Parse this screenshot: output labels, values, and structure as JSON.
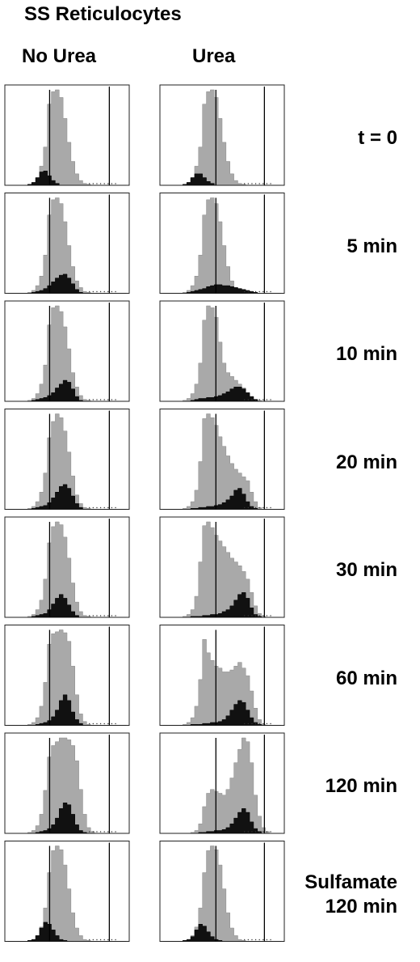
{
  "figure": {
    "title": "SS Reticulocytes",
    "columns": [
      "No Urea",
      "Urea"
    ]
  },
  "chart_data": {
    "type": "area",
    "title": "SS Reticulocytes",
    "columns": [
      "No Urea",
      "Urea"
    ],
    "rows": [
      {
        "label": [
          "t = 0"
        ]
      },
      {
        "label": [
          "5 min"
        ]
      },
      {
        "label": [
          "10 min"
        ]
      },
      {
        "label": [
          "20 min"
        ]
      },
      {
        "label": [
          "30 min"
        ]
      },
      {
        "label": [
          "60 min"
        ]
      },
      {
        "label": [
          "120 min"
        ]
      },
      {
        "label": [
          "Sulfamate",
          "120 min"
        ]
      }
    ],
    "series": [
      {
        "row": 0,
        "col": 0,
        "gray": [
          0,
          0,
          0,
          0,
          0,
          1,
          3,
          8,
          20,
          40,
          85,
          98,
          100,
          92,
          70,
          45,
          25,
          12,
          5,
          2,
          1,
          0,
          0,
          0,
          0,
          0,
          0,
          0,
          0,
          0
        ],
        "black": [
          0,
          0,
          0,
          0,
          0,
          1,
          3,
          8,
          14,
          15,
          10,
          5,
          2,
          0,
          0,
          0,
          0,
          0,
          0,
          0,
          0,
          0,
          0,
          0,
          0,
          0,
          0,
          0,
          0,
          0
        ]
      },
      {
        "row": 0,
        "col": 1,
        "gray": [
          0,
          0,
          0,
          0,
          0,
          1,
          3,
          8,
          20,
          40,
          85,
          98,
          100,
          92,
          70,
          45,
          25,
          12,
          5,
          2,
          1,
          0,
          0,
          0,
          0,
          0,
          0,
          0,
          0,
          0
        ],
        "black": [
          0,
          0,
          0,
          0,
          0,
          1,
          3,
          8,
          12,
          12,
          8,
          4,
          2,
          0,
          0,
          0,
          0,
          0,
          0,
          0,
          0,
          0,
          0,
          0,
          0,
          0,
          0,
          0,
          0,
          0
        ]
      },
      {
        "row": 1,
        "col": 0,
        "gray": [
          0,
          0,
          0,
          0,
          0,
          1,
          3,
          8,
          18,
          40,
          82,
          98,
          100,
          94,
          75,
          50,
          28,
          13,
          6,
          2,
          1,
          0,
          0,
          0,
          0,
          0,
          0,
          0,
          0,
          0
        ],
        "black": [
          0,
          0,
          0,
          0,
          0,
          0,
          1,
          2,
          3,
          5,
          8,
          12,
          16,
          19,
          20,
          16,
          10,
          4,
          1,
          0,
          0,
          0,
          0,
          0,
          0,
          0,
          0,
          0,
          0,
          0
        ]
      },
      {
        "row": 1,
        "col": 1,
        "gray": [
          0,
          0,
          0,
          0,
          0,
          1,
          3,
          8,
          18,
          40,
          82,
          98,
          100,
          94,
          75,
          50,
          28,
          13,
          6,
          2,
          1,
          0,
          0,
          0,
          0,
          0,
          0,
          0,
          0,
          0
        ],
        "black": [
          0,
          0,
          0,
          0,
          0,
          0,
          1,
          2,
          3,
          4,
          5,
          7,
          8,
          9,
          9,
          8,
          8,
          7,
          6,
          5,
          4,
          3,
          2,
          1,
          0,
          0,
          0,
          0,
          0,
          0
        ]
      },
      {
        "row": 2,
        "col": 0,
        "gray": [
          0,
          0,
          0,
          0,
          0,
          1,
          3,
          8,
          18,
          38,
          80,
          98,
          100,
          94,
          78,
          55,
          30,
          15,
          6,
          2,
          1,
          0,
          0,
          0,
          0,
          0,
          0,
          0,
          0,
          0
        ],
        "black": [
          0,
          0,
          0,
          0,
          0,
          0,
          1,
          2,
          3,
          4,
          6,
          9,
          14,
          18,
          22,
          20,
          13,
          5,
          1,
          0,
          0,
          0,
          0,
          0,
          0,
          0,
          0,
          0,
          0,
          0
        ]
      },
      {
        "row": 2,
        "col": 1,
        "gray": [
          0,
          0,
          0,
          0,
          0,
          1,
          3,
          8,
          18,
          40,
          85,
          100,
          98,
          88,
          62,
          40,
          30,
          26,
          22,
          18,
          14,
          9,
          5,
          2,
          1,
          0,
          0,
          0,
          0,
          0
        ],
        "black": [
          0,
          0,
          0,
          0,
          0,
          0,
          0,
          1,
          2,
          3,
          3,
          4,
          4,
          5,
          6,
          8,
          10,
          13,
          15,
          15,
          13,
          9,
          5,
          2,
          0,
          0,
          0,
          0,
          0,
          0
        ]
      },
      {
        "row": 3,
        "col": 0,
        "gray": [
          0,
          0,
          0,
          0,
          0,
          1,
          3,
          8,
          18,
          38,
          75,
          92,
          100,
          96,
          82,
          60,
          35,
          15,
          6,
          2,
          1,
          0,
          0,
          0,
          0,
          0,
          0,
          0,
          0,
          0
        ],
        "black": [
          0,
          0,
          0,
          0,
          0,
          0,
          1,
          2,
          3,
          4,
          7,
          12,
          18,
          24,
          26,
          22,
          14,
          6,
          2,
          0,
          0,
          0,
          0,
          0,
          0,
          0,
          0,
          0,
          0,
          0
        ]
      },
      {
        "row": 3,
        "col": 1,
        "gray": [
          0,
          0,
          0,
          0,
          0,
          1,
          3,
          8,
          20,
          50,
          95,
          100,
          96,
          88,
          76,
          66,
          56,
          48,
          42,
          38,
          34,
          30,
          18,
          8,
          2,
          0,
          0,
          0,
          0,
          0
        ],
        "black": [
          0,
          0,
          0,
          0,
          0,
          0,
          0,
          1,
          1,
          2,
          2,
          3,
          3,
          4,
          5,
          7,
          10,
          14,
          20,
          22,
          16,
          8,
          3,
          1,
          0,
          0,
          0,
          0,
          0,
          0
        ]
      },
      {
        "row": 4,
        "col": 0,
        "gray": [
          0,
          0,
          0,
          0,
          0,
          1,
          3,
          8,
          18,
          40,
          78,
          95,
          100,
          97,
          84,
          62,
          36,
          16,
          6,
          2,
          1,
          0,
          0,
          0,
          0,
          0,
          0,
          0,
          0,
          0
        ],
        "black": [
          0,
          0,
          0,
          0,
          0,
          0,
          1,
          2,
          3,
          4,
          8,
          14,
          20,
          24,
          20,
          13,
          6,
          2,
          0,
          0,
          0,
          0,
          0,
          0,
          0,
          0,
          0,
          0,
          0,
          0
        ]
      },
      {
        "row": 4,
        "col": 1,
        "gray": [
          0,
          0,
          0,
          0,
          0,
          1,
          3,
          8,
          22,
          58,
          96,
          100,
          94,
          86,
          80,
          74,
          68,
          62,
          58,
          54,
          48,
          40,
          26,
          12,
          4,
          1,
          0,
          0,
          0,
          0
        ],
        "black": [
          0,
          0,
          0,
          0,
          0,
          0,
          0,
          1,
          1,
          1,
          2,
          2,
          3,
          3,
          4,
          6,
          8,
          12,
          18,
          24,
          26,
          20,
          10,
          3,
          1,
          0,
          0,
          0,
          0,
          0
        ]
      },
      {
        "row": 5,
        "col": 0,
        "gray": [
          0,
          0,
          0,
          0,
          0,
          1,
          3,
          8,
          20,
          45,
          85,
          96,
          98,
          100,
          97,
          88,
          62,
          32,
          12,
          4,
          1,
          0,
          0,
          0,
          0,
          0,
          0,
          0,
          0,
          0
        ],
        "black": [
          0,
          0,
          0,
          0,
          0,
          0,
          0,
          1,
          2,
          3,
          5,
          9,
          16,
          26,
          32,
          26,
          14,
          6,
          2,
          0,
          0,
          0,
          0,
          0,
          0,
          0,
          0,
          0,
          0,
          0
        ]
      },
      {
        "row": 5,
        "col": 1,
        "gray": [
          0,
          0,
          0,
          0,
          0,
          1,
          3,
          8,
          20,
          48,
          90,
          76,
          68,
          62,
          60,
          56,
          56,
          58,
          62,
          66,
          60,
          52,
          36,
          18,
          6,
          1,
          0,
          0,
          0,
          0
        ],
        "black": [
          0,
          0,
          0,
          0,
          0,
          0,
          0,
          1,
          1,
          1,
          2,
          2,
          3,
          3,
          4,
          6,
          10,
          16,
          22,
          26,
          24,
          16,
          8,
          3,
          1,
          0,
          0,
          0,
          0,
          0
        ]
      },
      {
        "row": 6,
        "col": 0,
        "gray": [
          0,
          0,
          0,
          0,
          0,
          1,
          3,
          8,
          20,
          45,
          80,
          92,
          96,
          100,
          100,
          98,
          92,
          76,
          46,
          20,
          6,
          2,
          0,
          0,
          0,
          0,
          0,
          0,
          0,
          0
        ],
        "black": [
          0,
          0,
          0,
          0,
          0,
          0,
          0,
          1,
          2,
          3,
          5,
          9,
          16,
          26,
          32,
          30,
          20,
          9,
          3,
          1,
          0,
          0,
          0,
          0,
          0,
          0,
          0,
          0,
          0,
          0
        ]
      },
      {
        "row": 6,
        "col": 1,
        "gray": [
          0,
          0,
          0,
          0,
          0,
          0,
          0,
          1,
          3,
          10,
          28,
          42,
          46,
          44,
          42,
          40,
          46,
          58,
          74,
          88,
          100,
          96,
          74,
          40,
          18,
          6,
          2,
          0,
          0,
          0
        ],
        "black": [
          0,
          0,
          0,
          0,
          0,
          0,
          0,
          0,
          0,
          1,
          1,
          2,
          2,
          3,
          3,
          4,
          6,
          10,
          16,
          22,
          26,
          22,
          12,
          5,
          2,
          0,
          0,
          0,
          0,
          0
        ]
      },
      {
        "row": 7,
        "col": 0,
        "gray": [
          0,
          0,
          0,
          0,
          0,
          1,
          2,
          6,
          15,
          35,
          72,
          95,
          100,
          96,
          80,
          55,
          30,
          14,
          6,
          2,
          1,
          0,
          0,
          0,
          0,
          0,
          0,
          0,
          0,
          0
        ],
        "black": [
          0,
          0,
          0,
          0,
          0,
          1,
          2,
          6,
          14,
          20,
          18,
          12,
          6,
          2,
          1,
          0,
          0,
          0,
          0,
          0,
          0,
          0,
          0,
          0,
          0,
          0,
          0,
          0,
          0,
          0
        ]
      },
      {
        "row": 7,
        "col": 1,
        "gray": [
          0,
          0,
          0,
          0,
          0,
          1,
          2,
          6,
          15,
          35,
          72,
          95,
          100,
          96,
          80,
          55,
          30,
          14,
          6,
          2,
          1,
          0,
          0,
          0,
          0,
          0,
          0,
          0,
          0,
          0
        ],
        "black": [
          0,
          0,
          0,
          0,
          0,
          1,
          2,
          5,
          12,
          18,
          16,
          10,
          5,
          2,
          1,
          0,
          0,
          0,
          0,
          0,
          0,
          0,
          0,
          0,
          0,
          0,
          0,
          0,
          0,
          0
        ]
      }
    ]
  }
}
